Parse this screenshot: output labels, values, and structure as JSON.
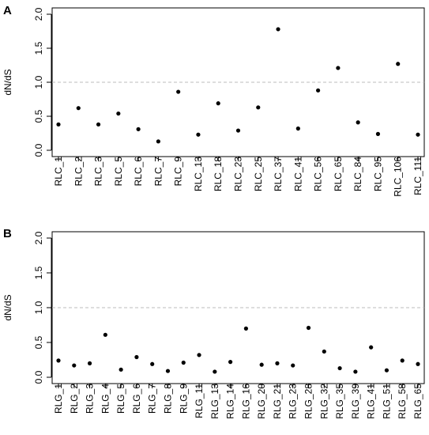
{
  "chart_data": [
    {
      "type": "scatter",
      "panel_label": "A",
      "ylabel": "dN/dS",
      "ylim": [
        0,
        2.0
      ],
      "yticks": [
        "0.0",
        "0.5",
        "1.0",
        "1.5",
        "2.0"
      ],
      "reference_line": 1.0,
      "categories": [
        "RLC_1",
        "RLC_2",
        "RLC_3",
        "RLC_5",
        "RLC_6",
        "RLC_7",
        "RLC_9",
        "RLC_13",
        "RLC_18",
        "RLC_23",
        "RLC_25",
        "RLC_37",
        "RLC_41",
        "RLC_56",
        "RLC_65",
        "RLC_84",
        "RLC_95",
        "RLC_106",
        "RLC_111"
      ],
      "values": [
        0.38,
        0.62,
        0.38,
        0.54,
        0.31,
        0.13,
        0.86,
        0.23,
        0.69,
        0.29,
        0.63,
        1.78,
        0.32,
        0.88,
        1.21,
        0.41,
        0.24,
        1.27,
        0.23
      ]
    },
    {
      "type": "scatter",
      "panel_label": "B",
      "ylabel": "dN/dS",
      "ylim": [
        0,
        2.0
      ],
      "yticks": [
        "0.0",
        "0.5",
        "1.0",
        "1.5",
        "2.0"
      ],
      "reference_line": 1.0,
      "categories": [
        "RLG_1",
        "RLG_2",
        "RLG_3",
        "RLG_4",
        "RLG_5",
        "RLG_6",
        "RLG_7",
        "RLG_8",
        "RLG_9",
        "RLG_11",
        "RLG_13",
        "RLG_14",
        "RLG_16",
        "RLG_20",
        "RLG_21",
        "RLG_23",
        "RLG_28",
        "RLG_32",
        "RLG_35",
        "RLG_39",
        "RLG_41",
        "RLG_51",
        "RLG_58",
        "RLG_65"
      ],
      "values": [
        0.24,
        0.17,
        0.2,
        0.61,
        0.11,
        0.29,
        0.19,
        0.09,
        0.21,
        0.32,
        0.08,
        0.22,
        0.7,
        0.18,
        0.2,
        0.17,
        0.71,
        0.37,
        0.13,
        0.08,
        0.43,
        0.1,
        0.24,
        0.19
      ]
    }
  ]
}
